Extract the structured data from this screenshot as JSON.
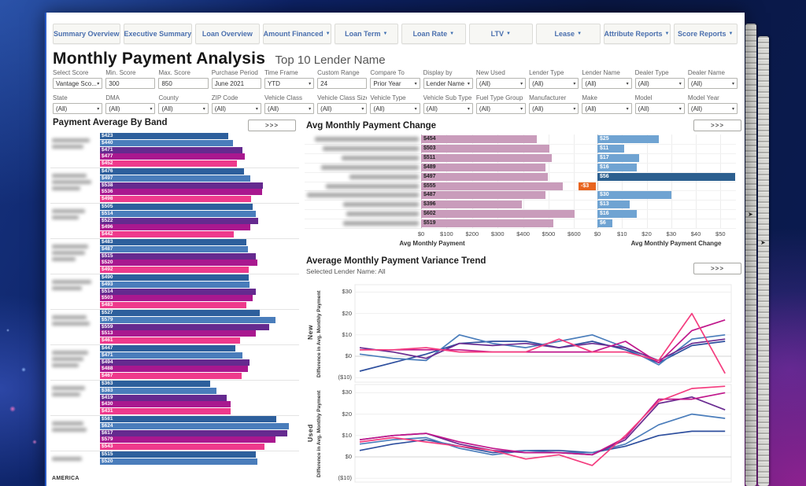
{
  "header": {
    "title": "Monthly Payment Analysis",
    "subtitle": "Top 10 Lender Name"
  },
  "ui": {
    "expand_label": ">>>"
  },
  "tabs": [
    {
      "label": "Summary Overview",
      "dropdown": false
    },
    {
      "label": "Executive Summary",
      "dropdown": false
    },
    {
      "label": "Loan Overview",
      "dropdown": false
    },
    {
      "label": "Amount Financed",
      "dropdown": true
    },
    {
      "label": "Loan Term",
      "dropdown": true
    },
    {
      "label": "Loan Rate",
      "dropdown": true
    },
    {
      "label": "LTV",
      "dropdown": true
    },
    {
      "label": "Lease",
      "dropdown": true
    },
    {
      "label": "Attribute Reports",
      "dropdown": true
    },
    {
      "label": "Score Reports",
      "dropdown": true
    }
  ],
  "filters": {
    "row1": [
      {
        "label": "Select Score",
        "value": "Vantage Sco...",
        "type": "select"
      },
      {
        "label": "Min. Score",
        "value": "300",
        "type": "text"
      },
      {
        "label": "Max. Score",
        "value": "850",
        "type": "text"
      },
      {
        "label": "Purchase Period",
        "value": "June 2021",
        "type": "text"
      },
      {
        "label": "Time Frame",
        "value": "YTD",
        "type": "select"
      },
      {
        "label": "Custom Range",
        "value": "24",
        "type": "text"
      },
      {
        "label": "Compare To",
        "value": "Prior Year",
        "type": "select"
      },
      {
        "label": "Display by",
        "value": "Lender Name",
        "type": "select"
      },
      {
        "label": "New Used",
        "value": "(All)",
        "type": "select"
      },
      {
        "label": "Lender Type",
        "value": "(All)",
        "type": "select"
      },
      {
        "label": "Lender Name",
        "value": "(All)",
        "type": "select"
      },
      {
        "label": "Dealer Type",
        "value": "(All)",
        "type": "select"
      },
      {
        "label": "Dealer Name",
        "value": "(All)",
        "type": "select"
      }
    ],
    "row2": [
      {
        "label": "State",
        "value": "(All)",
        "type": "select"
      },
      {
        "label": "DMA",
        "value": "(All)",
        "type": "select"
      },
      {
        "label": "County",
        "value": "(All)",
        "type": "select"
      },
      {
        "label": "ZIP Code",
        "value": "(All)",
        "type": "select"
      },
      {
        "label": "Vehicle Class",
        "value": "(All)",
        "type": "select"
      },
      {
        "label": "Vehicle Class Size",
        "value": "(All)",
        "type": "select"
      },
      {
        "label": "Vehicle Type",
        "value": "(All)",
        "type": "select"
      },
      {
        "label": "Vehicle Sub Type",
        "value": "(All)",
        "type": "select"
      },
      {
        "label": "Fuel Type Group",
        "value": "(All)",
        "type": "select"
      },
      {
        "label": "Manufacturer",
        "value": "(All)",
        "type": "select"
      },
      {
        "label": "Make",
        "value": "(All)",
        "type": "select"
      },
      {
        "label": "Model",
        "value": "(All)",
        "type": "select"
      },
      {
        "label": "Model Year",
        "value": "(All)",
        "type": "select"
      }
    ]
  },
  "chart_data": [
    {
      "id": "payment-average-by-band",
      "type": "bar",
      "orientation": "horizontal",
      "title": "Payment Average By Band",
      "value_prefix": "$",
      "lender_labels_blurred": true,
      "series_colors": [
        "#2d5f9c",
        "#4a7dbb",
        "#652a8f",
        "#a9188f",
        "#ee3a8c"
      ],
      "groups": [
        {
          "label": "(blurred)",
          "values": [
            423,
            440,
            471,
            477,
            452
          ]
        },
        {
          "label": "(blurred)",
          "values": [
            476,
            497,
            538,
            536,
            498
          ]
        },
        {
          "label": "(blurred)",
          "values": [
            505,
            514,
            522,
            496,
            442
          ]
        },
        {
          "label": "(blurred)",
          "values": [
            483,
            487,
            515,
            520,
            492
          ]
        },
        {
          "label": "(blurred)",
          "values": [
            490,
            493,
            514,
            503,
            483
          ]
        },
        {
          "label": "(blurred)",
          "values": [
            527,
            579,
            559,
            513,
            461
          ]
        },
        {
          "label": "(blurred)",
          "values": [
            447,
            471,
            494,
            488,
            467
          ]
        },
        {
          "label": "(blurred)",
          "values": [
            363,
            383,
            419,
            430,
            431
          ]
        },
        {
          "label": "(blurred)",
          "values": [
            581,
            624,
            617,
            579,
            543
          ]
        },
        {
          "label": "(blurred) AMERICA",
          "visible_text": "AMERICA",
          "values": [
            515,
            520
          ],
          "truncated": true
        }
      ]
    },
    {
      "id": "avg-monthly-payment-change",
      "type": "bar",
      "orientation": "horizontal",
      "title": "Avg Monthly Payment Change",
      "lender_labels_blurred": true,
      "bar_color": "#c99cbb",
      "change_bar_color": "#6fa3d2",
      "highlight_color": "#2c5f8f",
      "negative_color": "#e8641e",
      "rows": [
        {
          "lender": "(blurred)",
          "avg_monthly_payment": 454,
          "change": 25
        },
        {
          "lender": "(blurred)",
          "avg_monthly_payment": 503,
          "change": 11
        },
        {
          "lender": "(blurred)",
          "avg_monthly_payment": 511,
          "change": 17
        },
        {
          "lender": "(blurred)",
          "avg_monthly_payment": 489,
          "change": 16
        },
        {
          "lender": "(blurred)",
          "avg_monthly_payment": 497,
          "change": 56,
          "highlight": true
        },
        {
          "lender": "(blurred)",
          "avg_monthly_payment": 555,
          "change": -3
        },
        {
          "lender": "(blurred)",
          "avg_monthly_payment": 487,
          "change": 30
        },
        {
          "lender": "(blurred)",
          "avg_monthly_payment": 396,
          "change": 13
        },
        {
          "lender": "(blurred)",
          "avg_monthly_payment": 602,
          "change": 16
        },
        {
          "lender": "(blurred)",
          "avg_monthly_payment": 519,
          "change": 6
        }
      ],
      "payment_axis": {
        "ticks": [
          "$0",
          "$100",
          "$200",
          "$300",
          "$400",
          "$500",
          "$600"
        ],
        "label": "Avg Monthly Payment"
      },
      "change_axis": {
        "ticks": [
          "$0",
          "$10",
          "$20",
          "$30",
          "$40",
          "$50"
        ],
        "label": "Avg Monthly Payment Change"
      }
    },
    {
      "id": "average-monthly-payment-variance-trend",
      "type": "line",
      "title": "Average Monthly Payment Variance Trend",
      "subtitle": "Selected Lender Name: All",
      "ylabel": "Difference in Avg. Monthly Payment",
      "yticks": [
        "$30",
        "$20",
        "$10",
        "$0",
        "($10)"
      ],
      "ytick_values": [
        30,
        20,
        10,
        0,
        -10
      ],
      "ylim": [
        -12,
        33
      ],
      "x_axis_labels_visible": false,
      "panels": [
        {
          "row_label": "New",
          "series": [
            {
              "name": "line-1",
              "color": "#2e4f9e",
              "values": [
                -7,
                -3,
                1,
                6,
                7,
                7,
                4,
                7,
                3,
                -3,
                5,
                7
              ]
            },
            {
              "name": "line-2",
              "color": "#4a7dbb",
              "values": [
                1,
                -1,
                -2,
                10,
                6,
                4,
                7,
                10,
                4,
                -4,
                8,
                10
              ]
            },
            {
              "name": "line-3",
              "color": "#6a2c91",
              "values": [
                4,
                2,
                -1,
                6,
                5,
                6,
                4,
                6,
                4,
                -2,
                6,
                8
              ]
            },
            {
              "name": "line-4",
              "color": "#c0188c",
              "values": [
                3,
                3,
                3,
                3,
                2,
                2,
                2,
                2,
                7,
                -3,
                12,
                17
              ]
            },
            {
              "name": "line-5",
              "color": "#f43d7f",
              "values": [
                3,
                3,
                4,
                2,
                2,
                2,
                8,
                2,
                2,
                -2,
                20,
                -8
              ]
            }
          ]
        },
        {
          "row_label": "Used",
          "series": [
            {
              "name": "line-1",
              "color": "#2e4f9e",
              "values": [
                3,
                6,
                8,
                5,
                2,
                3,
                3,
                2,
                5,
                10,
                12,
                12
              ]
            },
            {
              "name": "line-2",
              "color": "#4a7dbb",
              "values": [
                6,
                8,
                9,
                4,
                1,
                3,
                2,
                2,
                6,
                15,
                20,
                18
              ]
            },
            {
              "name": "line-3",
              "color": "#6a2c91",
              "values": [
                8,
                10,
                11,
                6,
                3,
                2,
                2,
                1,
                8,
                25,
                28,
                22
              ]
            },
            {
              "name": "line-4",
              "color": "#c0188c",
              "values": [
                8,
                10,
                11,
                7,
                4,
                2,
                2,
                1,
                9,
                27,
                27,
                30
              ]
            },
            {
              "name": "line-5",
              "color": "#f43d7f",
              "values": [
                7,
                9,
                7,
                5,
                3,
                -1,
                1,
                -4,
                10,
                26,
                32,
                33
              ]
            }
          ]
        }
      ]
    }
  ]
}
